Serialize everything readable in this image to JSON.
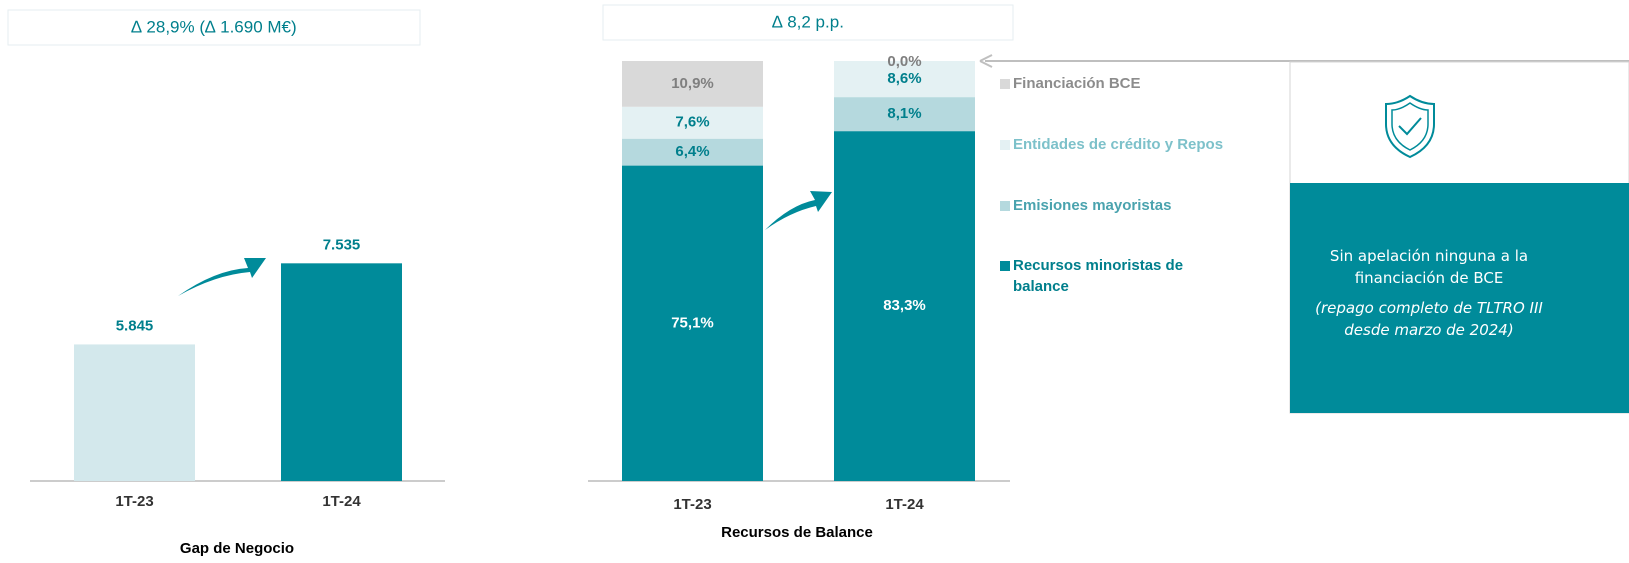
{
  "chart_data": [
    {
      "type": "bar",
      "header": "∆ 28,9% (∆ 1.690 M€)",
      "title": "Gap de Negocio",
      "categories": [
        "1T-23",
        "1T-24"
      ],
      "values": [
        5845,
        7535
      ],
      "value_labels": [
        "5.845",
        "7.535"
      ],
      "colors": [
        "#d3e8ec",
        "#008b9a"
      ],
      "ylim": [
        3000,
        8000
      ]
    },
    {
      "type": "stacked_bar",
      "header": "∆ 8,2 p.p.",
      "title": "Recursos de Balance",
      "categories": [
        "1T-23",
        "1T-24"
      ],
      "ylim": [
        0,
        100
      ],
      "series": [
        {
          "name": "Recursos minoristas de balance",
          "color": "#008b9a",
          "label_color": "#ffffff",
          "text_color": "#007f8c",
          "values": [
            75.1,
            83.3
          ],
          "value_labels": [
            "75,1%",
            "83,3%"
          ]
        },
        {
          "name": "Emisiones mayoristas",
          "color": "#b5d9de",
          "label_color": "#007f8c",
          "text_color": "#4aa3ae",
          "values": [
            6.4,
            8.1
          ],
          "value_labels": [
            "6,4%",
            "8,1%"
          ]
        },
        {
          "name": "Entidades de crédito y Repos",
          "color": "#e4f1f3",
          "label_color": "#007f8c",
          "text_color": "#7dc1ca",
          "values": [
            7.6,
            8.6
          ],
          "value_labels": [
            "7,6%",
            "8,6%"
          ]
        },
        {
          "name": "Financiación BCE",
          "color": "#d9d9d9",
          "label_color": "#7f7f7f",
          "text_color": "#8c8c8c",
          "values": [
            10.9,
            0.0
          ],
          "value_labels": [
            "10,9%",
            "0,0%"
          ]
        }
      ]
    }
  ],
  "callout": {
    "text": "Sin apelación ninguna a la financiación de BCE",
    "note": "(repago completo de TLTRO III desde marzo de 2024)"
  }
}
